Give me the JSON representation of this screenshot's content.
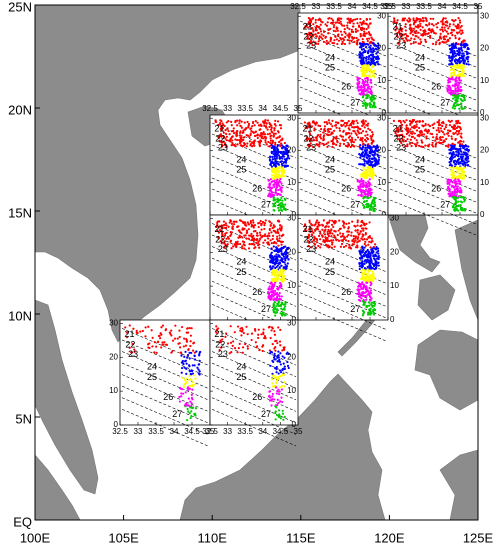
{
  "map": {
    "xlim": [
      100,
      125
    ],
    "ylim": [
      0,
      25
    ],
    "xticks": [
      {
        "value": 100,
        "label": "100E"
      },
      {
        "value": 105,
        "label": "105E"
      },
      {
        "value": 110,
        "label": "110E"
      },
      {
        "value": 115,
        "label": "115E"
      },
      {
        "value": 120,
        "label": "120E"
      },
      {
        "value": 125,
        "label": "125E"
      }
    ],
    "yticks": [
      {
        "value": 0,
        "label": "EQ"
      },
      {
        "value": 5,
        "label": "5N"
      },
      {
        "value": 10,
        "label": "10N"
      },
      {
        "value": 15,
        "label": "15N"
      },
      {
        "value": 20,
        "label": "20N"
      },
      {
        "value": 25,
        "label": "25N"
      }
    ]
  },
  "insets": {
    "salinity_lim": [
      32.5,
      35
    ],
    "temperature_lim": [
      0,
      31
    ],
    "salinity_ticks": [
      32.5,
      33,
      33.5,
      34,
      34.5,
      35
    ],
    "temperature_ticks": [
      0,
      10,
      20,
      30
    ],
    "density_labels": [
      21,
      22,
      23,
      24,
      25,
      26,
      27
    ]
  }
}
